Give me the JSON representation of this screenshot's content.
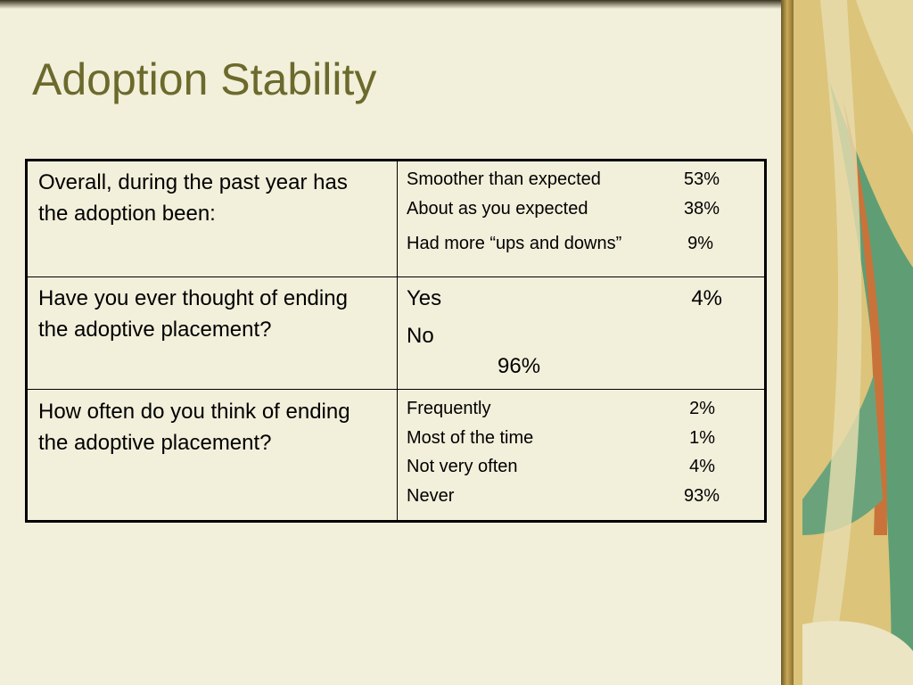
{
  "title": "Adoption Stability",
  "table": {
    "rows": [
      {
        "question": "Overall, during the past year has the adoption been:",
        "answers": [
          {
            "label": "Smoother than expected",
            "value": "53%"
          },
          {
            "label": "About as you expected",
            "value": "38%"
          },
          {
            "label": "Had more “ups and downs”",
            "value": "9%"
          }
        ]
      },
      {
        "question": "Have you ever thought of ending the adoptive placement?",
        "answers": [
          {
            "label": "Yes",
            "value": "4%"
          },
          {
            "label": "No",
            "value": "96%"
          }
        ]
      },
      {
        "question": "How often do you think of ending the adoptive placement?",
        "answers": [
          {
            "label": "Frequently",
            "value": "2%"
          },
          {
            "label": "Most of the time",
            "value": "1%"
          },
          {
            "label": "Not very often",
            "value": "4%"
          },
          {
            "label": "Never",
            "value": "93%"
          }
        ]
      }
    ]
  }
}
